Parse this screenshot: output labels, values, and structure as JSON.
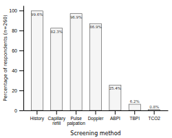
{
  "chart_data": {
    "type": "bar",
    "categories": [
      "History",
      "Capillary\nrefill",
      "Pulse\npalpation",
      "Doppler",
      "ABPI",
      "TBPI",
      "TCO2"
    ],
    "values": [
      99.6,
      82.3,
      96.9,
      86.9,
      25.4,
      6.2,
      0.8
    ],
    "value_labels": [
      "99.6%",
      "82.3%",
      "96.9%",
      "86.9%",
      "25.4%",
      "6.2%",
      "0.8%"
    ],
    "data_labels": true,
    "color": "#f5f5f5",
    "xlabel": "Screening method",
    "ylabel": "Percentage of respondents (n=260)",
    "ylim": [
      0,
      105
    ],
    "yticks": [
      0,
      20,
      40,
      60,
      80,
      100
    ],
    "grid": false
  }
}
